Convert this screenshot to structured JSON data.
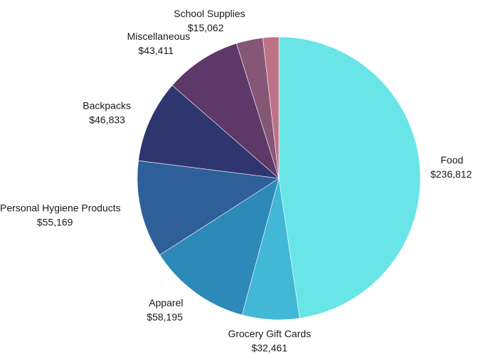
{
  "chart_data": {
    "type": "pie",
    "title": "",
    "start_angle_deg": 0,
    "direction": "clockwise",
    "slices": [
      {
        "label": "Food",
        "value": 236812,
        "value_label": "$236,812",
        "color": "#69e5e8"
      },
      {
        "label": "Grocery Gift Cards",
        "value": 32461,
        "value_label": "$32,461",
        "color": "#42b8d6"
      },
      {
        "label": "Apparel",
        "value": 58195,
        "value_label": "$58,195",
        "color": "#2d89b7"
      },
      {
        "label": "Personal Hygiene Products",
        "value": 55169,
        "value_label": "$55,169",
        "color": "#2f5f99"
      },
      {
        "label": "Backpacks",
        "value": 46833,
        "value_label": "$46,833",
        "color": "#2f356e"
      },
      {
        "label": "Miscellaneous",
        "value": 43411,
        "value_label": "$43,411",
        "color": "#5e3868"
      },
      {
        "label": "School Supplies",
        "value": 15062,
        "value_label": "$15,062",
        "color": "#865676"
      },
      {
        "label": "",
        "value": 9000,
        "value_label": "",
        "color": "#bf7285"
      }
    ]
  }
}
